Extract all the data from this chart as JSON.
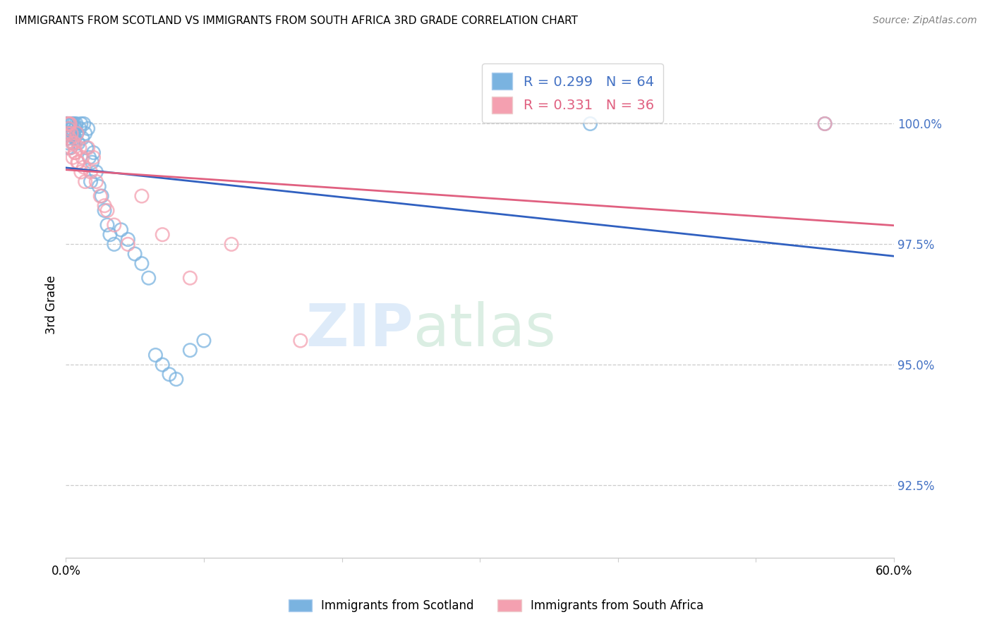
{
  "title": "IMMIGRANTS FROM SCOTLAND VS IMMIGRANTS FROM SOUTH AFRICA 3RD GRADE CORRELATION CHART",
  "source": "Source: ZipAtlas.com",
  "ylabel": "3rd Grade",
  "y_ticks": [
    92.5,
    95.0,
    97.5,
    100.0
  ],
  "y_tick_labels": [
    "92.5%",
    "95.0%",
    "97.5%",
    "100.0%"
  ],
  "x_min": 0.0,
  "x_max": 60.0,
  "y_min": 91.0,
  "y_max": 101.5,
  "scotland_color": "#7ab3e0",
  "south_africa_color": "#f4a0b0",
  "scotland_line_color": "#3060c0",
  "south_africa_line_color": "#e06080",
  "R_scotland": 0.299,
  "N_scotland": 64,
  "R_south_africa": 0.331,
  "N_south_africa": 36,
  "scotland_x": [
    0.05,
    0.06,
    0.07,
    0.08,
    0.09,
    0.1,
    0.11,
    0.12,
    0.13,
    0.14,
    0.15,
    0.16,
    0.17,
    0.18,
    0.19,
    0.2,
    0.22,
    0.25,
    0.28,
    0.3,
    0.33,
    0.36,
    0.4,
    0.44,
    0.48,
    0.52,
    0.56,
    0.6,
    0.65,
    0.7,
    0.75,
    0.8,
    0.9,
    1.0,
    1.1,
    1.2,
    1.3,
    1.4,
    1.5,
    1.6,
    1.7,
    1.8,
    1.9,
    2.0,
    2.2,
    2.4,
    2.6,
    2.8,
    3.0,
    3.2,
    3.5,
    4.0,
    4.5,
    5.0,
    5.5,
    6.0,
    6.5,
    7.0,
    7.5,
    8.0,
    9.0,
    10.0,
    38.0,
    55.0
  ],
  "scotland_y": [
    99.8,
    100.0,
    99.9,
    100.0,
    100.0,
    99.7,
    100.0,
    99.8,
    100.0,
    99.9,
    99.5,
    99.8,
    100.0,
    99.6,
    99.9,
    100.0,
    99.7,
    100.0,
    99.8,
    100.0,
    99.5,
    99.8,
    100.0,
    99.9,
    100.0,
    99.6,
    99.8,
    100.0,
    99.7,
    99.9,
    100.0,
    99.8,
    99.6,
    99.9,
    100.0,
    99.7,
    100.0,
    99.8,
    99.5,
    99.9,
    99.3,
    98.8,
    99.2,
    99.4,
    99.0,
    98.7,
    98.5,
    98.2,
    97.9,
    97.7,
    97.5,
    97.8,
    97.6,
    97.3,
    97.1,
    96.8,
    95.2,
    95.0,
    94.8,
    94.7,
    95.3,
    95.5,
    100.0,
    100.0
  ],
  "south_africa_x": [
    0.1,
    0.15,
    0.2,
    0.25,
    0.3,
    0.35,
    0.4,
    0.5,
    0.6,
    0.7,
    0.8,
    0.9,
    1.0,
    1.1,
    1.2,
    1.4,
    1.6,
    1.8,
    2.0,
    2.2,
    2.5,
    3.0,
    3.5,
    4.5,
    5.5,
    7.0,
    9.0,
    12.0,
    17.0,
    0.28,
    0.45,
    0.65,
    0.85,
    1.3,
    2.8,
    55.0
  ],
  "south_africa_y": [
    99.8,
    100.0,
    99.9,
    100.0,
    100.0,
    99.5,
    99.8,
    99.3,
    99.6,
    99.4,
    99.8,
    99.2,
    99.5,
    99.0,
    99.3,
    98.8,
    99.5,
    99.0,
    99.3,
    98.8,
    98.5,
    98.2,
    97.9,
    97.5,
    98.5,
    97.7,
    96.8,
    97.5,
    95.5,
    99.7,
    99.6,
    99.4,
    99.2,
    99.1,
    98.3,
    100.0
  ]
}
